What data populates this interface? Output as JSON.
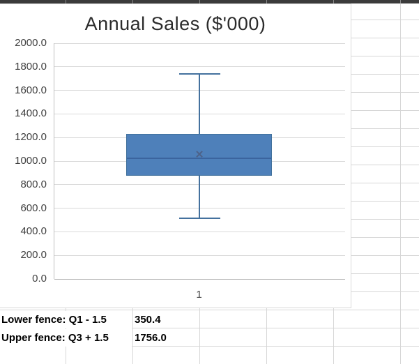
{
  "spreadsheet": {
    "header_row_fill": "#3b3b3b",
    "gridline_color": "#d6d6d6",
    "fence_rows": [
      {
        "label": "Lower fence: Q1 - 1.5",
        "value": "350.4"
      },
      {
        "label": "Upper fence: Q3 + 1.5",
        "value": "1756.0"
      }
    ]
  },
  "chart_data": {
    "type": "boxplot",
    "title": "Annual Sales ($'000)",
    "categories": [
      "1"
    ],
    "xlabel": "",
    "ylabel": "",
    "ylim": [
      0,
      2000
    ],
    "y_tick_step": 200,
    "y_ticks": [
      "2000.0",
      "1800.0",
      "1600.0",
      "1400.0",
      "1200.0",
      "1000.0",
      "800.0",
      "600.0",
      "400.0",
      "200.0",
      "0.0"
    ],
    "grid": "horizontal",
    "legend": "none",
    "mean_marker_glyph": "✕",
    "series": [
      {
        "name": "1",
        "min": 515,
        "q1": 877.5,
        "median": 1025,
        "mean": 1055,
        "q3": 1229,
        "max": 1740,
        "lower_fence": 350.4,
        "upper_fence": 1756.0
      }
    ],
    "colors": {
      "box_fill": "#4e80ba",
      "box_border": "#41719c",
      "whisker": "#44719e",
      "median_line": "#3b649e",
      "mean_marker": "#4d6289",
      "gridline": "#d9d9d9",
      "axis_line": "#bfbfbf",
      "tick_text": "#404040"
    }
  }
}
